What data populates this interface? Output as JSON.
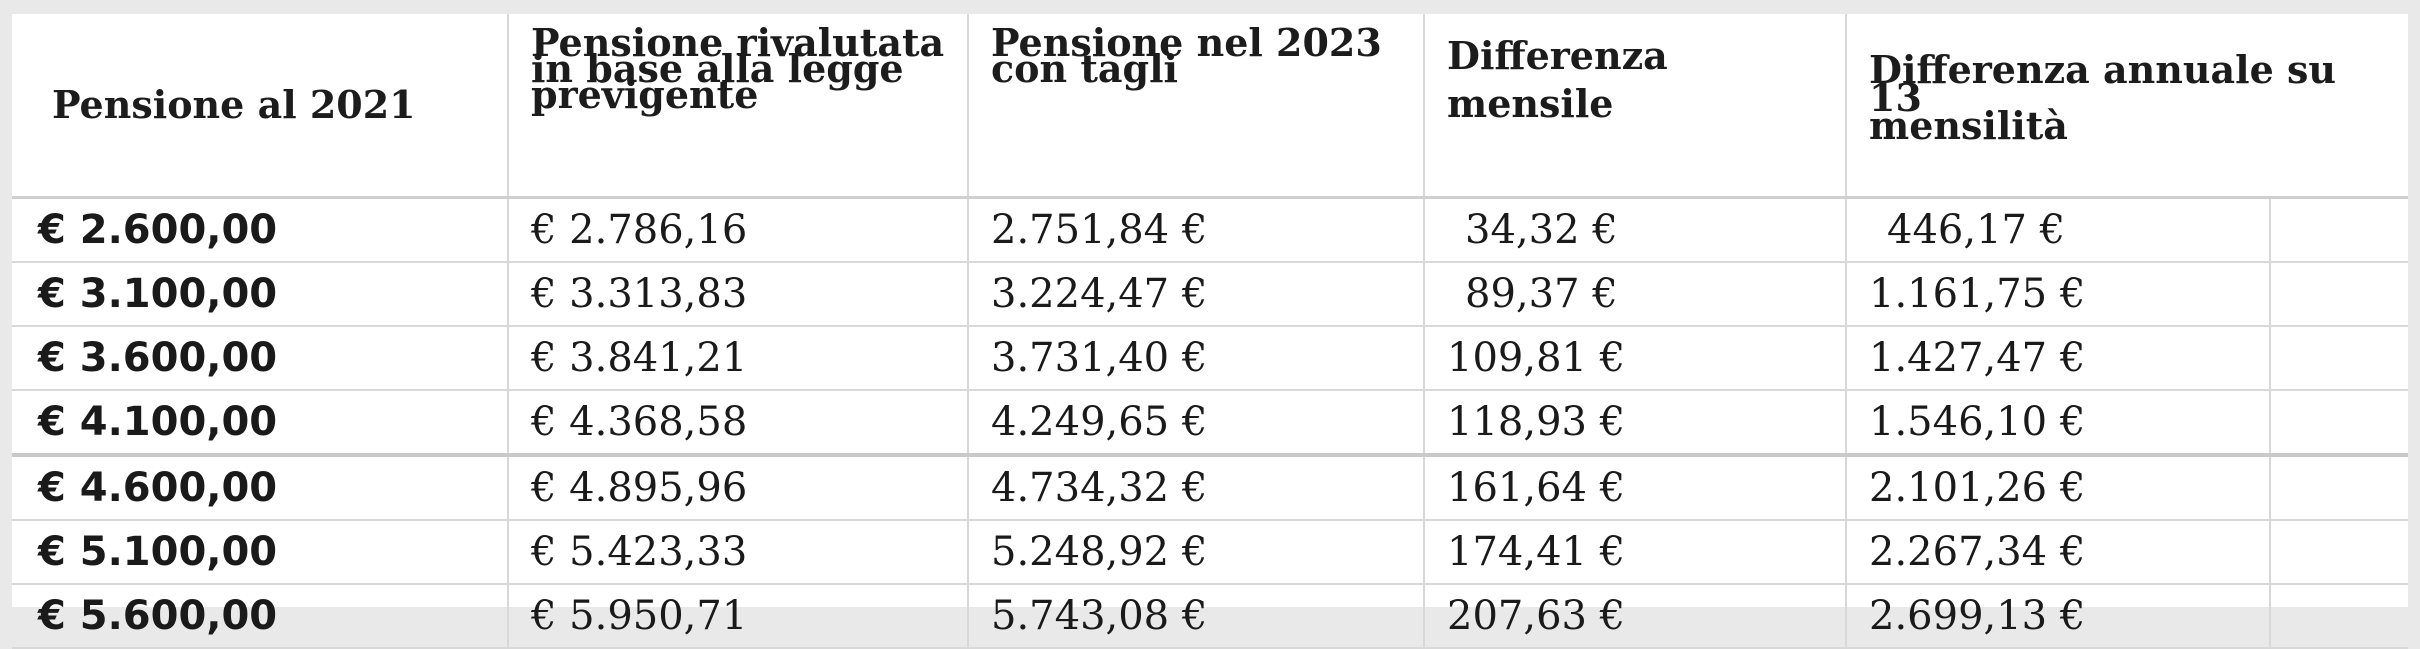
{
  "table": {
    "headers": [
      "Pensione al 2021",
      "Pensione rivalutata in base alla legge previgente",
      "Pensione nel 2023 con tagli",
      "Differenza mensile",
      "Differenza annuale su 13 mensilità"
    ],
    "header_lines": {
      "h1": [
        "Pensione al 2021"
      ],
      "h2": [
        "Pensione rivalutata",
        "in base alla legge",
        "previgente"
      ],
      "h3": [
        "Pensione nel 2023",
        "con tagli"
      ],
      "h4": [
        "Differenza",
        "mensile"
      ],
      "h5": [
        "Differenza annuale su 13",
        "mensilità"
      ]
    },
    "rows": [
      {
        "base": "€ 2.600,00",
        "rivalutata": "€ 2.786,16",
        "con_tagli": "2.751,84 €",
        "diff_mensile": "34,32 €",
        "diff_annuale": "446,17 €"
      },
      {
        "base": "€ 3.100,00",
        "rivalutata": "€ 3.313,83",
        "con_tagli": "3.224,47 €",
        "diff_mensile": "89,37 €",
        "diff_annuale": "1.161,75 €"
      },
      {
        "base": "€ 3.600,00",
        "rivalutata": "€ 3.841,21",
        "con_tagli": "3.731,40 €",
        "diff_mensile": "109,81 €",
        "diff_annuale": "1.427,47 €"
      },
      {
        "base": "€ 4.100,00",
        "rivalutata": "€ 4.368,58",
        "con_tagli": "4.249,65 €",
        "diff_mensile": "118,93 €",
        "diff_annuale": "1.546,10 €"
      },
      {
        "base": "€ 4.600,00",
        "rivalutata": "€ 4.895,96",
        "con_tagli": "4.734,32 €",
        "diff_mensile": "161,64 €",
        "diff_annuale": "2.101,26 €"
      },
      {
        "base": "€ 5.100,00",
        "rivalutata": "€ 5.423,33",
        "con_tagli": "5.248,92 €",
        "diff_mensile": "174,41 €",
        "diff_annuale": "2.267,34 €"
      },
      {
        "base": "€ 5.600,00",
        "rivalutata": "€ 5.950,71",
        "con_tagli": "5.743,08 €",
        "diff_mensile": "207,63 €",
        "diff_annuale": "2.699,13 €"
      }
    ]
  }
}
